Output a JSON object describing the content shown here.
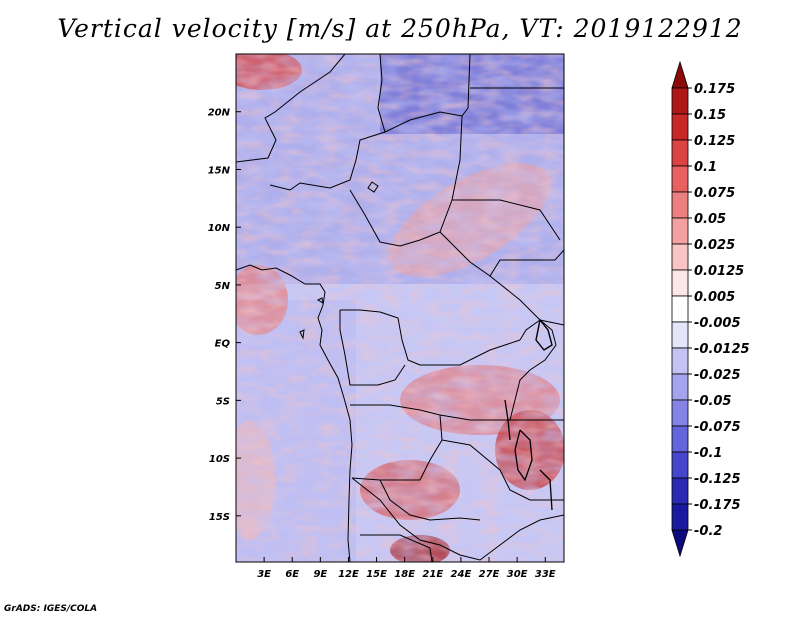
{
  "title": "Vertical velocity [m/s] at 250hPa, VT: 2019122912",
  "credit": "GrADS: IGES/COLA",
  "map": {
    "lon_range": [
      0,
      35
    ],
    "lat_range": [
      -19,
      25
    ],
    "lon_ticks": [
      {
        "value": 3,
        "label": "3E"
      },
      {
        "value": 6,
        "label": "6E"
      },
      {
        "value": 9,
        "label": "9E"
      },
      {
        "value": 12,
        "label": "12E"
      },
      {
        "value": 15,
        "label": "15E"
      },
      {
        "value": 18,
        "label": "18E"
      },
      {
        "value": 21,
        "label": "21E"
      },
      {
        "value": 24,
        "label": "24E"
      },
      {
        "value": 27,
        "label": "27E"
      },
      {
        "value": 30,
        "label": "30E"
      },
      {
        "value": 33,
        "label": "33E"
      }
    ],
    "lat_ticks": [
      {
        "value": 20,
        "label": "20N"
      },
      {
        "value": 15,
        "label": "15N"
      },
      {
        "value": 10,
        "label": "10N"
      },
      {
        "value": 5,
        "label": "5N"
      },
      {
        "value": 0,
        "label": "EQ"
      },
      {
        "value": -5,
        "label": "5S"
      },
      {
        "value": -10,
        "label": "10S"
      },
      {
        "value": -15,
        "label": "15S"
      }
    ],
    "field_colors": {
      "strong_up": "#b01818",
      "up": "#e87878",
      "weak_up": "#f6c4c4",
      "neutral": "#ffffff",
      "weak_down": "#c8c8f4",
      "down": "#8888e4",
      "strong_down": "#3434b8"
    }
  },
  "colorbar": {
    "levels": [
      "0.175",
      "0.15",
      "0.125",
      "0.1",
      "0.075",
      "0.05",
      "0.025",
      "0.0125",
      "0.005",
      "-0.005",
      "-0.0125",
      "-0.025",
      "-0.05",
      "-0.075",
      "-0.1",
      "-0.125",
      "-0.175",
      "-0.2"
    ],
    "colors": [
      "#8c0a0a",
      "#b01818",
      "#c82828",
      "#dc4444",
      "#e86060",
      "#ec8080",
      "#f2a0a0",
      "#f8c4c4",
      "#fde6e6",
      "#ffffff",
      "#e4e4fa",
      "#c4c4f4",
      "#a4a4ee",
      "#8484e6",
      "#6464dc",
      "#4646cc",
      "#2a2ab4",
      "#1a1aa0",
      "#0c0c80"
    ]
  }
}
